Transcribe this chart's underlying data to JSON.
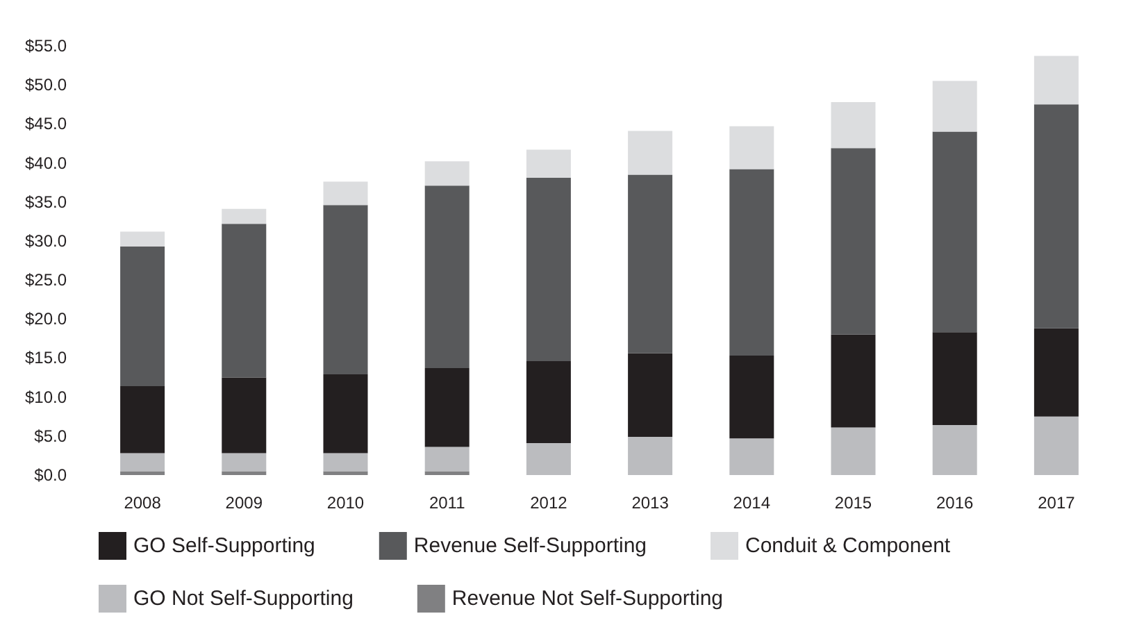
{
  "chart_data": {
    "type": "bar",
    "stacked": true,
    "categories": [
      "2008",
      "2009",
      "2010",
      "2011",
      "2012",
      "2013",
      "2014",
      "2015",
      "2016",
      "2017"
    ],
    "series": [
      {
        "name": "Revenue Not Self-Supporting",
        "color": "#808082",
        "values": [
          0.5,
          0.5,
          0.5,
          0.5,
          0,
          0,
          0,
          0,
          0,
          0
        ]
      },
      {
        "name": "GO Not Self-Supporting",
        "color": "#bbbcbf",
        "values": [
          2.3,
          2.3,
          2.3,
          3.1,
          4.1,
          4.9,
          4.7,
          6.1,
          6.4,
          7.5
        ]
      },
      {
        "name": "GO Self-Supporting",
        "color": "#231f20",
        "values": [
          8.6,
          9.7,
          10.1,
          10.1,
          10.5,
          10.7,
          10.6,
          11.9,
          11.9,
          11.3
        ]
      },
      {
        "name": "Revenue Self-Supporting",
        "color": "#58595b",
        "values": [
          17.9,
          19.7,
          21.7,
          23.4,
          23.5,
          22.9,
          23.9,
          23.9,
          25.7,
          28.7
        ]
      },
      {
        "name": "Conduit & Component",
        "color": "#dcdddf",
        "values": [
          1.9,
          1.9,
          3.0,
          3.1,
          3.6,
          5.6,
          5.5,
          5.9,
          6.5,
          6.2
        ]
      }
    ],
    "ylim": [
      0,
      55
    ],
    "yticks": [
      {
        "value": 0,
        "label": "$0.0"
      },
      {
        "value": 5,
        "label": "$5.0"
      },
      {
        "value": 10,
        "label": "$10.0"
      },
      {
        "value": 15,
        "label": "$15.0"
      },
      {
        "value": 20,
        "label": "$20.0"
      },
      {
        "value": 25,
        "label": "$25.0"
      },
      {
        "value": 30,
        "label": "$30.0"
      },
      {
        "value": 35,
        "label": "$35.0"
      },
      {
        "value": 40,
        "label": "$40.0"
      },
      {
        "value": 45,
        "label": "$45.0"
      },
      {
        "value": 50,
        "label": "$50.0"
      },
      {
        "value": 55,
        "label": "$55.0"
      }
    ],
    "grid": false,
    "legend": "bottom"
  }
}
